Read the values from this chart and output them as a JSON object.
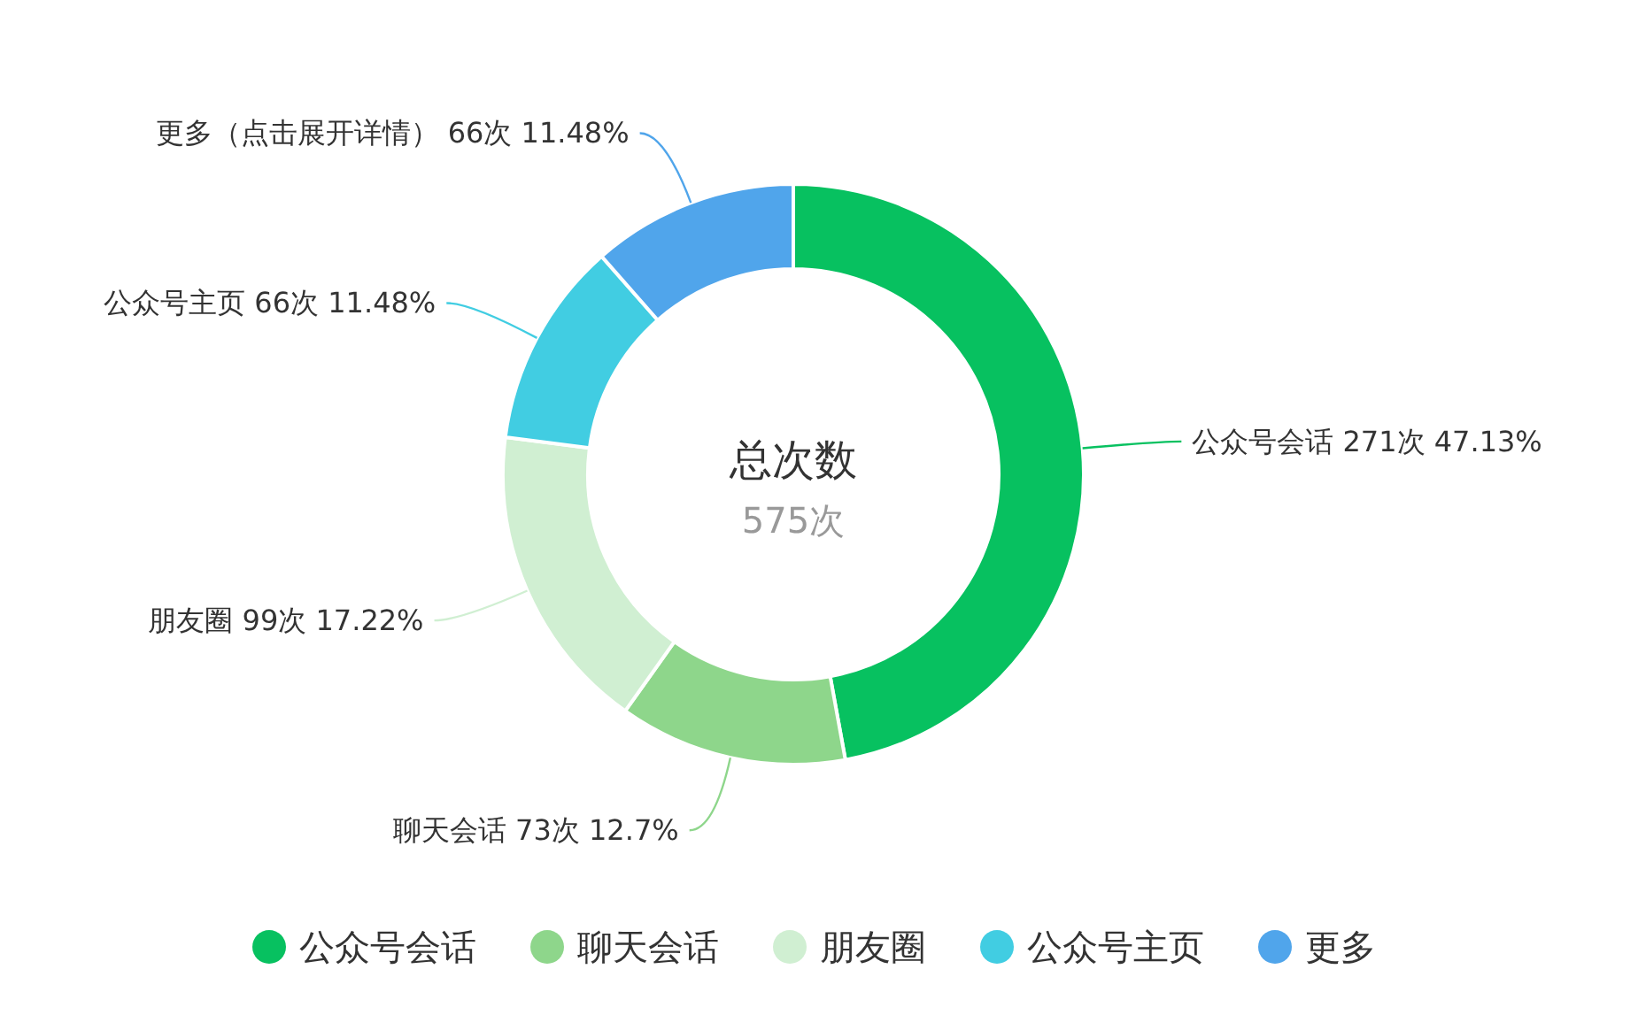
{
  "chart_data": {
    "type": "donut",
    "categories": [
      "公众号会话",
      "聊天会话",
      "朋友圈",
      "公众号主页",
      "更多"
    ],
    "values": [
      271,
      73,
      99,
      66,
      66
    ],
    "colors": [
      "#07c160",
      "#8ed68b",
      "#d0efd2",
      "#41cde2",
      "#50a5eb"
    ],
    "value_labels": [
      "公众号会话 271次 47.13%",
      "聊天会话 73次 12.7%",
      "朋友圈 99次 17.22%",
      "公众号主页 66次 11.48%",
      "更多（点击展开详情） 66次 11.48%"
    ],
    "annotations": [
      "总次数",
      "575次"
    ],
    "legend": "bottom"
  }
}
